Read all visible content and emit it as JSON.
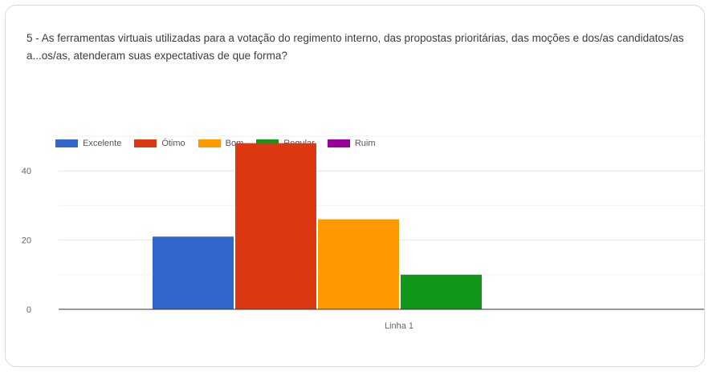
{
  "chart_data": {
    "type": "bar",
    "title": "5 - As ferramentas virtuais utilizadas para a votação do regimento interno, das propostas prioritárias, das moções e dos/as candidatos/as a...os/as, atenderam suas expectativas de que forma?",
    "categories": [
      "Linha 1"
    ],
    "series": [
      {
        "name": "Excelente",
        "values": [
          21
        ],
        "color": "#3366cc"
      },
      {
        "name": "Ótimo",
        "values": [
          48
        ],
        "color": "#dc3912"
      },
      {
        "name": "Bom",
        "values": [
          26
        ],
        "color": "#ff9900"
      },
      {
        "name": "Regular",
        "values": [
          10
        ],
        "color": "#109618"
      },
      {
        "name": "Ruim",
        "values": [
          0
        ],
        "color": "#990099"
      }
    ],
    "yticks": [
      "0",
      "20",
      "40"
    ],
    "ylim": [
      0,
      50
    ],
    "grid": true,
    "legend_position": "top"
  }
}
